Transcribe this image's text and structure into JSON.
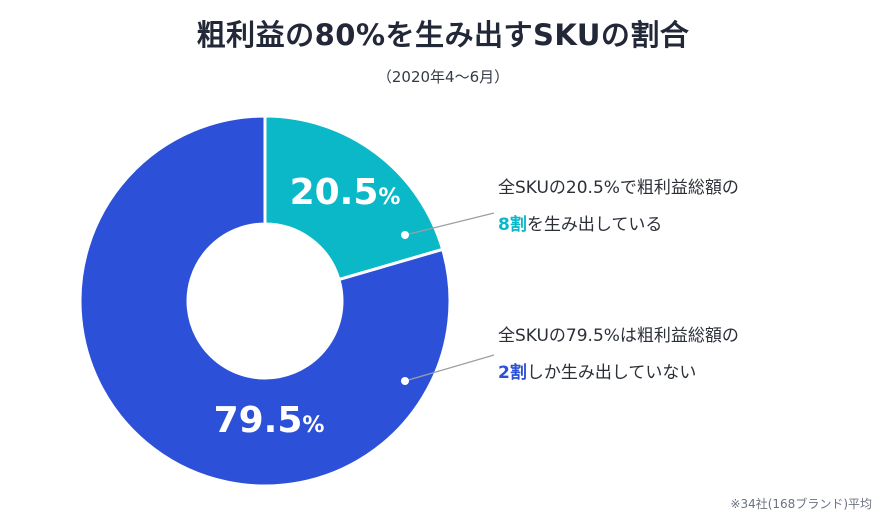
{
  "title": "粗利益の80%を生み出すSKUの割合",
  "subtitle": "（2020年4〜6月）",
  "footnote": "※34社(168ブランド)平均",
  "annotations": [
    {
      "line1": "全SKUの20.5%で粗利益総額の",
      "highlight": "8割",
      "rest": "を生み出している",
      "color": "#0ab8c8"
    },
    {
      "line1": "全SKUの79.5%は粗利益総額の",
      "highlight": "2割",
      "rest": "しか生み出していない",
      "color": "#2d50d8"
    }
  ],
  "chart_data": {
    "type": "pie",
    "donut": true,
    "slices": [
      {
        "value": 20.5,
        "label": "20.5",
        "unit": "%",
        "color": "#0ab8c8"
      },
      {
        "value": 79.5,
        "label": "79.5",
        "unit": "%",
        "color": "#2d50d8"
      }
    ]
  }
}
